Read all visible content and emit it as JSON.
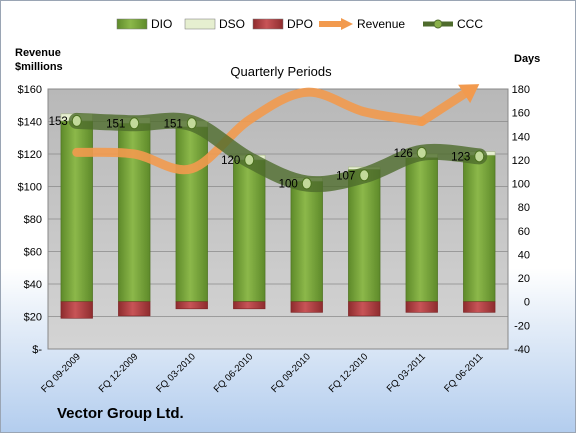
{
  "chart_data": {
    "type": "bar",
    "title": "Quarterly Periods",
    "company": "Vector Group Ltd.",
    "left_axis": {
      "label_line1": "Revenue",
      "label_line2": "$millions",
      "min": 0,
      "max": 160,
      "step": 20,
      "tick_labels": [
        "$-",
        "$20",
        "$40",
        "$60",
        "$80",
        "$100",
        "$120",
        "$140",
        "$160"
      ]
    },
    "right_axis": {
      "label": "Days",
      "min": -40,
      "max": 180,
      "step": 20,
      "tick_labels": [
        "-40",
        "-20",
        "0",
        "20",
        "40",
        "60",
        "80",
        "100",
        "120",
        "140",
        "160",
        "180"
      ]
    },
    "categories": [
      "FQ 09-2009",
      "FQ 12-2009",
      "FQ 03-2010",
      "FQ 06-2010",
      "FQ 09-2010",
      "FQ 12-2010",
      "FQ 03-2011",
      "FQ 06-2011"
    ],
    "series": [
      {
        "name": "DIO",
        "axis": "days",
        "values": [
          153,
          151,
          148,
          120,
          102,
          112,
          122,
          124
        ],
        "color": "#77a03a"
      },
      {
        "name": "DSO",
        "axis": "days",
        "values": [
          6,
          5,
          5,
          4,
          3,
          2,
          3,
          3
        ],
        "color": "#e6efd0"
      },
      {
        "name": "DPO",
        "axis": "days",
        "values": [
          -14,
          -12,
          -6,
          -6,
          -9,
          -12,
          -9,
          -9
        ],
        "color": "#b84548"
      },
      {
        "name": "Revenue",
        "axis": "revenue",
        "values": [
          121,
          120,
          111,
          141,
          158,
          146,
          140,
          163
        ],
        "color": "#f29a4e"
      },
      {
        "name": "CCC",
        "axis": "days",
        "values": [
          153,
          151,
          151,
          120,
          100,
          107,
          126,
          123
        ],
        "color": "#4e6b2c"
      }
    ],
    "ccc_labels": [
      "153",
      "151",
      "151",
      "120",
      "100",
      "107",
      "126",
      "123"
    ],
    "legend_position": "top",
    "plot_background": "#c0c0c0",
    "grid": true
  }
}
